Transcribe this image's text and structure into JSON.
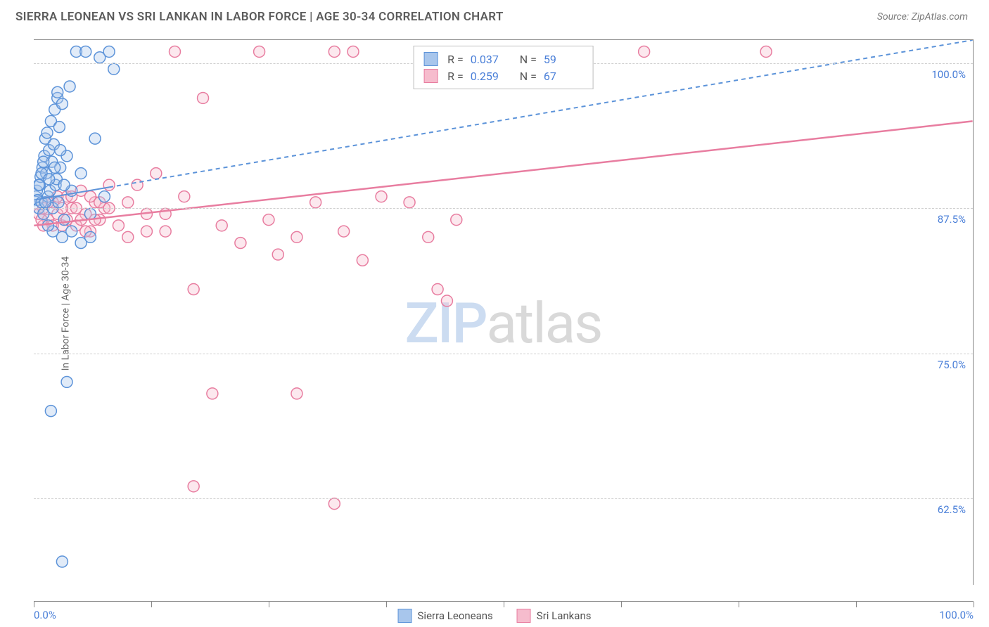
{
  "title": "SIERRA LEONEAN VS SRI LANKAN IN LABOR FORCE | AGE 30-34 CORRELATION CHART",
  "source": "Source: ZipAtlas.com",
  "y_axis_label": "In Labor Force | Age 30-34",
  "watermark": {
    "part1": "ZIP",
    "part2": "atlas"
  },
  "colors": {
    "series_a_stroke": "#5c93d9",
    "series_a_fill": "#a8c6ec",
    "series_b_stroke": "#e87da0",
    "series_b_fill": "#f6bccd",
    "axis": "#888888",
    "grid": "#cfcfcf",
    "tick_text": "#4a7fd8",
    "title_text": "#5c5c5c"
  },
  "chart": {
    "type": "scatter",
    "x_domain": [
      0,
      100
    ],
    "y_domain": [
      55,
      102
    ],
    "y_gridlines": [
      62.5,
      75.0,
      87.5,
      100.0
    ],
    "y_grid_labels": [
      "62.5%",
      "75.0%",
      "87.5%",
      "100.0%"
    ],
    "x_ticks": [
      0,
      12.5,
      25,
      37.5,
      50,
      62.5,
      75,
      87.5,
      100
    ],
    "x_label_start": "0.0%",
    "x_label_end": "100.0%",
    "marker_radius": 8
  },
  "legend_top": [
    {
      "series": "a",
      "r_label": "R =",
      "r_value": "0.037",
      "n_label": "N =",
      "n_value": "59"
    },
    {
      "series": "b",
      "r_label": "R =",
      "r_value": "0.259",
      "n_label": "N =",
      "n_value": "67"
    }
  ],
  "legend_bottom": [
    {
      "series": "a",
      "label": "Sierra Leoneans"
    },
    {
      "series": "b",
      "label": "Sri Lankans"
    }
  ],
  "trend_lines": {
    "a": {
      "x1": 0,
      "y1": 88.2,
      "x2": 100,
      "y2": 102.0,
      "dash": "6 5",
      "width": 2,
      "solid_until_x": 8
    },
    "b": {
      "x1": 0,
      "y1": 86.0,
      "x2": 100,
      "y2": 95.0,
      "dash": "none",
      "width": 2.5,
      "solid_until_x": 100
    }
  },
  "series": {
    "a": [
      [
        0.2,
        88.5
      ],
      [
        0.3,
        89.0
      ],
      [
        0.4,
        88.2
      ],
      [
        0.5,
        87.5
      ],
      [
        0.6,
        89.5
      ],
      [
        0.7,
        90.2
      ],
      [
        0.8,
        88.0
      ],
      [
        0.9,
        91.0
      ],
      [
        1.0,
        87.0
      ],
      [
        1.1,
        92.0
      ],
      [
        1.2,
        93.5
      ],
      [
        1.3,
        90.5
      ],
      [
        1.4,
        94.0
      ],
      [
        1.5,
        88.5
      ],
      [
        1.6,
        92.5
      ],
      [
        1.7,
        89.0
      ],
      [
        1.8,
        95.0
      ],
      [
        1.9,
        91.5
      ],
      [
        2.0,
        87.5
      ],
      [
        2.1,
        93.0
      ],
      [
        2.2,
        96.0
      ],
      [
        2.3,
        89.5
      ],
      [
        2.4,
        90.0
      ],
      [
        2.5,
        97.0
      ],
      [
        2.6,
        88.0
      ],
      [
        2.7,
        94.5
      ],
      [
        2.8,
        91.0
      ],
      [
        3.0,
        96.5
      ],
      [
        3.2,
        86.5
      ],
      [
        3.5,
        92.0
      ],
      [
        3.8,
        98.0
      ],
      [
        4.0,
        89.0
      ],
      [
        4.5,
        101.0
      ],
      [
        5.0,
        90.5
      ],
      [
        5.5,
        101.0
      ],
      [
        6.0,
        87.0
      ],
      [
        6.5,
        93.5
      ],
      [
        7.0,
        100.5
      ],
      [
        7.5,
        88.5
      ],
      [
        8.0,
        101.0
      ],
      [
        8.5,
        99.5
      ],
      [
        3.0,
        85.0
      ],
      [
        4.0,
        85.5
      ],
      [
        5.0,
        84.5
      ],
      [
        6.0,
        85.0
      ],
      [
        2.0,
        85.5
      ],
      [
        1.5,
        86.0
      ],
      [
        2.5,
        97.5
      ],
      [
        3.5,
        72.5
      ],
      [
        1.8,
        70.0
      ],
      [
        3.0,
        57.0
      ],
      [
        0.5,
        89.5
      ],
      [
        0.8,
        90.5
      ],
      [
        1.0,
        91.5
      ],
      [
        1.2,
        88.0
      ],
      [
        1.6,
        90.0
      ],
      [
        2.2,
        91.0
      ],
      [
        2.8,
        92.5
      ],
      [
        3.2,
        89.5
      ]
    ],
    "b": [
      [
        0.5,
        87.0
      ],
      [
        1.0,
        87.5
      ],
      [
        1.5,
        86.5
      ],
      [
        2.0,
        88.0
      ],
      [
        2.5,
        87.0
      ],
      [
        3.0,
        86.0
      ],
      [
        3.5,
        88.5
      ],
      [
        4.0,
        87.5
      ],
      [
        4.5,
        86.0
      ],
      [
        5.0,
        89.0
      ],
      [
        5.5,
        87.0
      ],
      [
        6.0,
        85.5
      ],
      [
        6.5,
        88.0
      ],
      [
        7.0,
        86.5
      ],
      [
        7.5,
        87.5
      ],
      [
        8.0,
        89.5
      ],
      [
        9.0,
        86.0
      ],
      [
        10.0,
        88.0
      ],
      [
        11.0,
        89.5
      ],
      [
        12.0,
        87.0
      ],
      [
        13.0,
        90.5
      ],
      [
        14.0,
        85.5
      ],
      [
        15.0,
        101.0
      ],
      [
        18.0,
        97.0
      ],
      [
        20.0,
        86.0
      ],
      [
        22.0,
        84.5
      ],
      [
        24.0,
        101.0
      ],
      [
        25.0,
        86.5
      ],
      [
        26.0,
        83.5
      ],
      [
        28.0,
        85.0
      ],
      [
        30.0,
        88.0
      ],
      [
        32.0,
        101.0
      ],
      [
        33.0,
        85.5
      ],
      [
        34.0,
        101.0
      ],
      [
        35.0,
        83.0
      ],
      [
        37.0,
        88.5
      ],
      [
        40.0,
        88.0
      ],
      [
        42.0,
        85.0
      ],
      [
        43.0,
        80.5
      ],
      [
        44.0,
        79.5
      ],
      [
        45.0,
        86.5
      ],
      [
        17.0,
        80.5
      ],
      [
        19.0,
        71.5
      ],
      [
        28.0,
        71.5
      ],
      [
        32.0,
        62.0
      ],
      [
        17.0,
        63.5
      ],
      [
        10.0,
        85.0
      ],
      [
        12.0,
        85.5
      ],
      [
        14.0,
        87.0
      ],
      [
        16.0,
        88.5
      ],
      [
        6.0,
        88.5
      ],
      [
        8.0,
        87.5
      ],
      [
        65.0,
        101.0
      ],
      [
        78.0,
        101.0
      ],
      [
        3.0,
        87.5
      ],
      [
        4.0,
        88.5
      ],
      [
        5.0,
        86.5
      ],
      [
        7.0,
        88.0
      ],
      [
        2.0,
        86.0
      ],
      [
        2.5,
        88.5
      ],
      [
        3.5,
        86.5
      ],
      [
        4.5,
        87.5
      ],
      [
        5.5,
        85.5
      ],
      [
        6.5,
        86.5
      ],
      [
        1.0,
        86.0
      ],
      [
        1.5,
        88.0
      ],
      [
        0.8,
        86.5
      ]
    ]
  }
}
